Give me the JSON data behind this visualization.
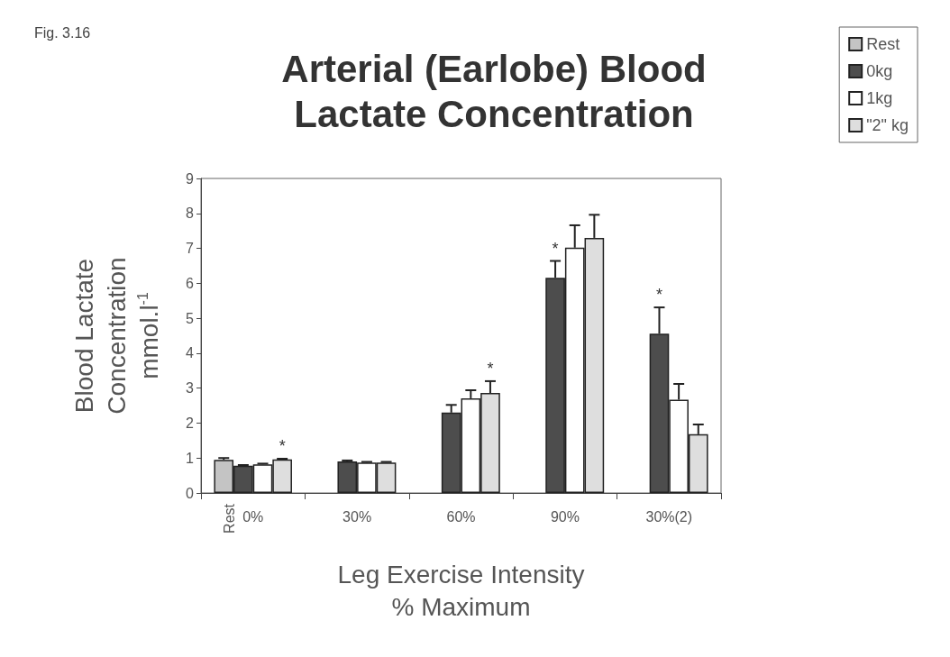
{
  "chart_data": {
    "type": "bar",
    "title": "Arterial (Earlobe) Blood\nLactate Concentration",
    "xlabel": "Leg Exercise Intensity\n% Maximum",
    "ylabel": "Blood Lactate\nConcentration\nmmol.l$^{-1}$",
    "categories": [
      "0%",
      "30%",
      "60%",
      "90%",
      "30%(2)"
    ],
    "series": [
      {
        "name": "Rest",
        "color": "#c4c4c4",
        "values": [
          0.95,
          null,
          null,
          null,
          null
        ],
        "errors": [
          [
            0.95,
            1.0
          ],
          null,
          null,
          null,
          null
        ]
      },
      {
        "name": "0kg",
        "color": "#4d4d4d",
        "values": [
          0.78,
          0.9,
          2.3,
          6.16,
          4.56
        ],
        "errors": [
          [
            0.78,
            0.8
          ],
          [
            0.9,
            0.93
          ],
          [
            2.3,
            2.52
          ],
          [
            6.16,
            6.64
          ],
          [
            4.56,
            5.31
          ]
        ]
      },
      {
        "name": "1kg",
        "color": "#ffffff",
        "values": [
          0.82,
          0.87,
          2.71,
          7.02,
          2.67
        ],
        "errors": [
          [
            0.82,
            0.84
          ],
          [
            0.87,
            0.89
          ],
          [
            2.71,
            2.94
          ],
          [
            7.02,
            7.66
          ],
          [
            2.67,
            3.12
          ]
        ]
      },
      {
        "name": "\"2\" kg",
        "color": "#dedede",
        "values": [
          0.96,
          0.87,
          2.86,
          7.3,
          1.68
        ],
        "errors": [
          [
            0.96,
            0.98
          ],
          [
            0.87,
            0.89
          ],
          [
            2.86,
            3.2
          ],
          [
            7.3,
            7.96
          ],
          [
            1.68,
            1.96
          ]
        ]
      }
    ],
    "ylim": [
      0,
      9
    ],
    "yticks": [
      0,
      1,
      2,
      3,
      4,
      5,
      6,
      7,
      8,
      9
    ],
    "grid": false,
    "legend": "top right",
    "annotations": [
      "Fig. 3.16",
      "Rest",
      "*",
      "*",
      "*",
      "*"
    ]
  }
}
